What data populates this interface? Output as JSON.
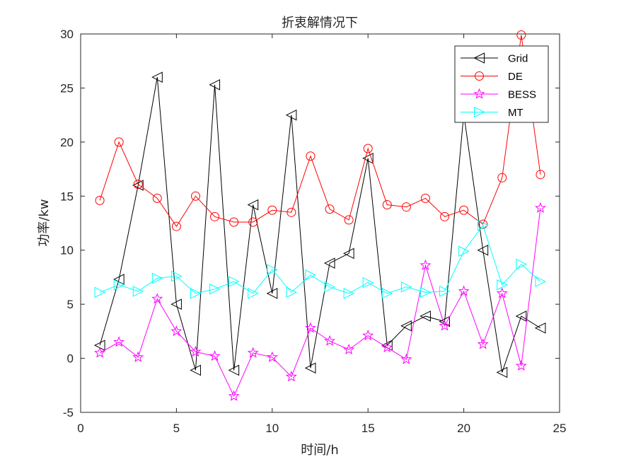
{
  "chart_data": {
    "type": "line",
    "title": "折衷解情况下",
    "xlabel": "时间/h",
    "ylabel": "功率/kw",
    "xlim": [
      0,
      25
    ],
    "ylim": [
      -5,
      30
    ],
    "xticks": [
      0,
      5,
      10,
      15,
      20,
      25
    ],
    "yticks": [
      -5,
      0,
      5,
      10,
      15,
      20,
      25,
      30
    ],
    "legend_position": "top-right",
    "grid": false,
    "x": [
      1,
      2,
      3,
      4,
      5,
      6,
      7,
      8,
      9,
      10,
      11,
      12,
      13,
      14,
      15,
      16,
      17,
      18,
      19,
      20,
      21,
      22,
      23,
      24
    ],
    "series": [
      {
        "name": "Grid",
        "color": "#000000",
        "marker": "triangle-left",
        "values": [
          1.2,
          7.3,
          16.0,
          26.0,
          5.0,
          -1.1,
          25.3,
          -1.1,
          14.2,
          6.0,
          22.5,
          -0.9,
          8.8,
          9.7,
          18.5,
          1.2,
          3.0,
          3.9,
          3.4,
          22.6,
          10.0,
          -1.3,
          3.9,
          2.8
        ]
      },
      {
        "name": "DE",
        "color": "#ff0000",
        "marker": "circle",
        "values": [
          14.6,
          20.0,
          16.1,
          14.8,
          12.2,
          15.0,
          13.1,
          12.6,
          12.6,
          13.7,
          13.5,
          18.7,
          13.8,
          12.8,
          19.4,
          14.2,
          14.0,
          14.8,
          13.1,
          13.7,
          12.4,
          16.7,
          29.9,
          17.0
        ]
      },
      {
        "name": "BESS",
        "color": "#ff00ff",
        "marker": "star",
        "values": [
          0.5,
          1.5,
          0.1,
          5.5,
          2.5,
          0.6,
          0.2,
          -3.5,
          0.5,
          0.1,
          -1.7,
          2.8,
          1.6,
          0.8,
          2.1,
          1.0,
          -0.1,
          8.6,
          3.0,
          6.2,
          1.3,
          6.0,
          -0.7,
          13.9
        ]
      },
      {
        "name": "MT",
        "color": "#00ffff",
        "marker": "triangle-right",
        "values": [
          6.1,
          6.8,
          6.2,
          7.4,
          7.6,
          6.0,
          6.4,
          7.1,
          6.0,
          8.2,
          6.1,
          7.7,
          6.6,
          6.0,
          7.0,
          6.0,
          6.6,
          6.1,
          6.2,
          9.9,
          12.3,
          6.8,
          8.7,
          7.1
        ]
      }
    ]
  }
}
